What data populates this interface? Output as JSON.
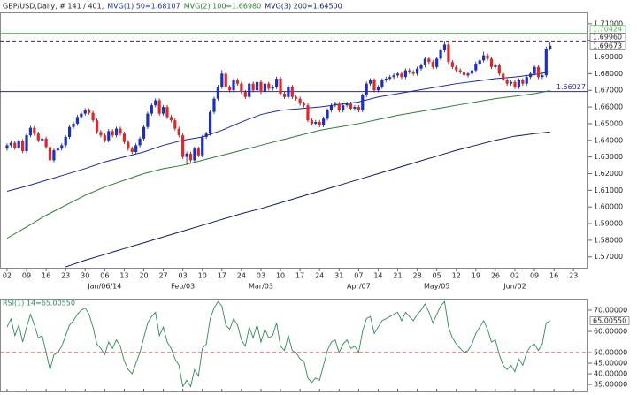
{
  "chart_data": {
    "type": "candlestick",
    "title": "GBP/USD,Daily, # 141 / 401,",
    "up_color": "#1c2fc4",
    "down_color": "#e0262a",
    "wick_color": "#222222",
    "x": [
      0,
      1,
      2,
      3,
      4,
      5,
      6,
      7,
      8,
      9,
      10,
      11,
      12,
      13,
      14,
      15,
      16,
      17,
      18,
      19,
      20,
      21,
      22,
      23,
      24,
      25,
      26,
      27,
      28,
      29,
      30,
      31,
      32,
      33,
      34,
      35,
      36,
      37,
      38,
      39,
      40,
      41,
      42,
      43,
      44,
      45,
      46,
      47,
      48,
      49,
      50,
      51,
      52,
      53,
      54,
      55,
      56,
      57,
      58,
      59,
      60,
      61,
      62,
      63,
      64,
      65,
      66,
      67,
      68,
      69,
      70,
      71,
      72,
      73,
      74,
      75,
      76,
      77,
      78,
      79,
      80,
      81,
      82,
      83,
      84,
      85,
      86,
      87,
      88,
      89,
      90,
      91,
      92,
      93,
      94,
      95,
      96,
      97,
      98,
      99,
      100,
      101,
      102,
      103,
      104,
      105,
      106,
      107,
      108,
      109,
      110,
      111,
      112,
      113,
      114,
      115,
      116,
      117,
      118,
      119,
      120,
      121,
      122,
      123,
      124,
      125,
      126,
      127,
      128,
      129,
      130,
      131,
      132,
      133,
      134,
      135,
      136,
      137,
      138,
      139
    ],
    "open": [
      1.635,
      1.637,
      1.6385,
      1.6355,
      1.6395,
      1.6335,
      1.643,
      1.6475,
      1.644,
      1.64,
      1.641,
      1.636,
      1.628,
      1.634,
      1.635,
      1.637,
      1.642,
      1.648,
      1.65,
      1.654,
      1.656,
      1.658,
      1.6565,
      1.652,
      1.645,
      1.643,
      1.64,
      1.6455,
      1.643,
      1.647,
      1.644,
      1.639,
      1.635,
      1.633,
      1.637,
      1.641,
      1.648,
      1.656,
      1.661,
      1.664,
      1.656,
      1.66,
      1.654,
      1.652,
      1.647,
      1.643,
      1.63,
      1.632,
      1.628,
      1.635,
      1.631,
      1.642,
      1.644,
      1.657,
      1.665,
      1.672,
      1.68,
      1.672,
      1.67,
      1.676,
      1.674,
      1.669,
      1.666,
      1.674,
      1.67,
      1.675,
      1.669,
      1.674,
      1.671,
      1.672,
      1.677,
      1.668,
      1.666,
      1.672,
      1.666,
      1.665,
      1.662,
      1.661,
      1.652,
      1.65,
      1.651,
      1.649,
      1.653,
      1.658,
      1.661,
      1.662,
      1.658,
      1.661,
      1.662,
      1.659,
      1.66,
      1.658,
      1.667,
      1.674,
      1.676,
      1.67,
      1.672,
      1.676,
      1.677,
      1.678,
      1.679,
      1.68,
      1.678,
      1.682,
      1.681,
      1.68,
      1.683,
      1.685,
      1.689,
      1.687,
      1.684,
      1.689,
      1.694,
      1.6975,
      1.687,
      1.684,
      1.682,
      1.681,
      1.679,
      1.68,
      1.682,
      1.686,
      1.688,
      1.691,
      1.689,
      1.684,
      1.685,
      1.68,
      1.676,
      1.674,
      1.675,
      1.672,
      1.676,
      1.674,
      1.678,
      1.68,
      1.684,
      1.678,
      1.679,
      1.695
    ],
    "high": [
      1.6382,
      1.6397,
      1.6397,
      1.6407,
      1.6407,
      1.6442,
      1.6487,
      1.6487,
      1.6452,
      1.6422,
      1.6422,
      1.6372,
      1.6352,
      1.6362,
      1.6382,
      1.6432,
      1.6492,
      1.6512,
      1.6552,
      1.6572,
      1.6592,
      1.6592,
      1.6577,
      1.6532,
      1.6462,
      1.6442,
      1.6467,
      1.6467,
      1.6482,
      1.6482,
      1.6452,
      1.6402,
      1.6362,
      1.6382,
      1.6422,
      1.6492,
      1.6572,
      1.6622,
      1.6652,
      1.6652,
      1.6612,
      1.6612,
      1.6552,
      1.6532,
      1.6482,
      1.6442,
      1.6332,
      1.6332,
      1.6362,
      1.6362,
      1.6432,
      1.6452,
      1.6582,
      1.6662,
      1.6732,
      1.6822,
      1.6812,
      1.6732,
      1.6772,
      1.6772,
      1.6752,
      1.6702,
      1.6752,
      1.6752,
      1.6762,
      1.6762,
      1.6752,
      1.6752,
      1.6732,
      1.6782,
      1.6782,
      1.6692,
      1.6732,
      1.6732,
      1.6672,
      1.6662,
      1.6632,
      1.6622,
      1.6532,
      1.6522,
      1.6522,
      1.6542,
      1.6592,
      1.6622,
      1.6632,
      1.6632,
      1.6622,
      1.6632,
      1.6632,
      1.6612,
      1.6612,
      1.6682,
      1.6752,
      1.6772,
      1.6772,
      1.6732,
      1.6772,
      1.6782,
      1.6792,
      1.6802,
      1.6812,
      1.6812,
      1.6832,
      1.6832,
      1.6822,
      1.6842,
      1.6862,
      1.6902,
      1.6902,
      1.6882,
      1.6902,
      1.6952,
      1.6996,
      1.6987,
      1.6882,
      1.6852,
      1.6832,
      1.6822,
      1.6812,
      1.6832,
      1.6872,
      1.6892,
      1.6932,
      1.6922,
      1.6902,
      1.6862,
      1.6862,
      1.6812,
      1.6772,
      1.6762,
      1.6762,
      1.6772,
      1.6772,
      1.6792,
      1.6812,
      1.6852,
      1.6852,
      1.6802,
      1.6962,
      1.699
    ],
    "low": [
      1.6338,
      1.6358,
      1.6343,
      1.6343,
      1.6323,
      1.6323,
      1.6418,
      1.6428,
      1.6388,
      1.6388,
      1.6348,
      1.6268,
      1.6268,
      1.6328,
      1.6338,
      1.6358,
      1.6408,
      1.6468,
      1.6488,
      1.6528,
      1.6548,
      1.6553,
      1.6508,
      1.6438,
      1.6418,
      1.6388,
      1.6388,
      1.6418,
      1.6418,
      1.6428,
      1.6378,
      1.6338,
      1.6318,
      1.6318,
      1.6358,
      1.6398,
      1.6468,
      1.6548,
      1.6598,
      1.6548,
      1.6548,
      1.6528,
      1.6508,
      1.6458,
      1.6418,
      1.6288,
      1.6252,
      1.6268,
      1.6268,
      1.6298,
      1.6298,
      1.6408,
      1.6428,
      1.6558,
      1.6638,
      1.6708,
      1.6708,
      1.6688,
      1.6688,
      1.6728,
      1.6678,
      1.6648,
      1.6648,
      1.6688,
      1.6688,
      1.6678,
      1.6678,
      1.6698,
      1.6698,
      1.6708,
      1.6668,
      1.6648,
      1.6648,
      1.6648,
      1.6638,
      1.6608,
      1.6598,
      1.6508,
      1.6488,
      1.6488,
      1.6478,
      1.6478,
      1.6518,
      1.6568,
      1.6598,
      1.6568,
      1.6568,
      1.6598,
      1.6578,
      1.6578,
      1.6568,
      1.6568,
      1.6658,
      1.6728,
      1.6688,
      1.6688,
      1.6708,
      1.6748,
      1.6758,
      1.6768,
      1.6778,
      1.6768,
      1.6768,
      1.6798,
      1.6788,
      1.6788,
      1.6818,
      1.6838,
      1.6858,
      1.6828,
      1.6828,
      1.6878,
      1.6928,
      1.6858,
      1.6828,
      1.6808,
      1.6798,
      1.6778,
      1.6778,
      1.6788,
      1.6808,
      1.6848,
      1.6868,
      1.6878,
      1.6828,
      1.6828,
      1.6788,
      1.6748,
      1.6728,
      1.6728,
      1.6708,
      1.6708,
      1.6728,
      1.6728,
      1.6768,
      1.6788,
      1.6768,
      1.6768,
      1.6778,
      1.6938
    ],
    "close": [
      1.637,
      1.6385,
      1.6355,
      1.6395,
      1.6335,
      1.643,
      1.6475,
      1.644,
      1.64,
      1.641,
      1.636,
      1.628,
      1.634,
      1.635,
      1.637,
      1.642,
      1.648,
      1.65,
      1.654,
      1.656,
      1.658,
      1.6565,
      1.652,
      1.645,
      1.643,
      1.64,
      1.6455,
      1.643,
      1.647,
      1.644,
      1.639,
      1.635,
      1.633,
      1.637,
      1.641,
      1.648,
      1.656,
      1.661,
      1.664,
      1.656,
      1.66,
      1.654,
      1.652,
      1.647,
      1.643,
      1.63,
      1.632,
      1.628,
      1.635,
      1.631,
      1.642,
      1.644,
      1.657,
      1.665,
      1.672,
      1.68,
      1.672,
      1.67,
      1.676,
      1.674,
      1.669,
      1.666,
      1.674,
      1.67,
      1.675,
      1.669,
      1.674,
      1.671,
      1.672,
      1.677,
      1.668,
      1.666,
      1.672,
      1.666,
      1.665,
      1.662,
      1.661,
      1.652,
      1.65,
      1.651,
      1.649,
      1.653,
      1.658,
      1.661,
      1.662,
      1.658,
      1.661,
      1.662,
      1.659,
      1.66,
      1.658,
      1.667,
      1.674,
      1.676,
      1.67,
      1.672,
      1.676,
      1.677,
      1.678,
      1.679,
      1.68,
      1.678,
      1.682,
      1.681,
      1.68,
      1.683,
      1.685,
      1.689,
      1.687,
      1.684,
      1.689,
      1.694,
      1.6975,
      1.687,
      1.684,
      1.682,
      1.681,
      1.679,
      1.68,
      1.682,
      1.686,
      1.688,
      1.691,
      1.689,
      1.684,
      1.685,
      1.68,
      1.676,
      1.674,
      1.675,
      1.672,
      1.676,
      1.674,
      1.678,
      1.68,
      1.684,
      1.678,
      1.679,
      1.695,
      1.69673
    ],
    "last_label": "1.69673",
    "lines": [
      {
        "name": "MVG(1) 50=1.68107",
        "color": "#1a2aa0",
        "x": [
          0,
          5,
          10,
          15,
          20,
          25,
          30,
          35,
          40,
          45,
          50,
          55,
          60,
          65,
          70,
          75,
          80,
          85,
          90,
          95,
          100,
          105,
          110,
          115,
          120,
          125,
          130,
          135,
          139
        ],
        "values": [
          1.6094,
          1.6125,
          1.616,
          1.6195,
          1.623,
          1.627,
          1.63,
          1.633,
          1.637,
          1.64,
          1.642,
          1.646,
          1.651,
          1.6555,
          1.658,
          1.659,
          1.66,
          1.6615,
          1.663,
          1.666,
          1.668,
          1.67,
          1.672,
          1.674,
          1.6755,
          1.677,
          1.678,
          1.6795,
          1.6811
        ]
      },
      {
        "name": "MVG(2) 100=1.66980",
        "color": "#2e7d32",
        "x": [
          0,
          5,
          10,
          15,
          20,
          25,
          30,
          35,
          40,
          45,
          50,
          55,
          60,
          65,
          70,
          75,
          80,
          85,
          90,
          95,
          100,
          105,
          110,
          115,
          120,
          125,
          130,
          135,
          139
        ],
        "values": [
          1.5812,
          1.588,
          1.595,
          1.601,
          1.607,
          1.612,
          1.616,
          1.62,
          1.623,
          1.625,
          1.628,
          1.631,
          1.634,
          1.637,
          1.64,
          1.643,
          1.646,
          1.648,
          1.65,
          1.6525,
          1.655,
          1.657,
          1.659,
          1.661,
          1.663,
          1.665,
          1.6665,
          1.668,
          1.6698
        ]
      },
      {
        "name": "MVG(3) 200=1.64500",
        "color": "#0d1b5e",
        "x": [
          15,
          20,
          25,
          30,
          35,
          40,
          45,
          50,
          55,
          60,
          65,
          70,
          75,
          80,
          85,
          90,
          95,
          100,
          105,
          110,
          115,
          120,
          125,
          130,
          135,
          139
        ],
        "values": [
          1.564,
          1.568,
          1.5715,
          1.575,
          1.5785,
          1.582,
          1.5855,
          1.589,
          1.5925,
          1.596,
          1.599,
          1.6025,
          1.606,
          1.6095,
          1.613,
          1.6165,
          1.62,
          1.6235,
          1.627,
          1.6305,
          1.634,
          1.637,
          1.64,
          1.6425,
          1.644,
          1.645
        ]
      }
    ],
    "levels": [
      {
        "value": 1.70424,
        "label": "1.70424",
        "color": "#4cbb4c",
        "style": "solid"
      },
      {
        "value": 1.6996,
        "label": "1.69960",
        "color": "#333333",
        "style": "dashed"
      },
      {
        "value": 1.66927,
        "label": "1.66927",
        "color": "#2a2aa0",
        "style": "solid"
      }
    ],
    "xlim": [
      -1.8,
      148.8
    ],
    "ylim": [
      1.5635,
      1.7168
    ],
    "yticks": [
      {
        "value": 1.57,
        "label": "1.57000"
      },
      {
        "value": 1.58,
        "label": "1.58000"
      },
      {
        "value": 1.59,
        "label": "1.59000"
      },
      {
        "value": 1.6,
        "label": "1.60000"
      },
      {
        "value": 1.61,
        "label": "1.61000"
      },
      {
        "value": 1.62,
        "label": "1.62000"
      },
      {
        "value": 1.63,
        "label": "1.63000"
      },
      {
        "value": 1.64,
        "label": "1.64000"
      },
      {
        "value": 1.65,
        "label": "1.65000"
      },
      {
        "value": 1.66,
        "label": "1.66000"
      },
      {
        "value": 1.67,
        "label": "1.67000"
      },
      {
        "value": 1.68,
        "label": "1.68000"
      },
      {
        "value": 1.69,
        "label": "1.69000"
      },
      {
        "value": 1.7,
        "label": "1.70000"
      },
      {
        "value": 1.71,
        "label": "1.71000"
      }
    ],
    "xticks": [
      {
        "value": 0,
        "label": "02"
      },
      {
        "value": 5,
        "label": "09"
      },
      {
        "value": 10,
        "label": "16"
      },
      {
        "value": 15,
        "label": "23"
      },
      {
        "value": 20,
        "label": "30"
      },
      {
        "value": 25,
        "label": "06"
      },
      {
        "value": 30,
        "label": "13"
      },
      {
        "value": 35,
        "label": "20"
      },
      {
        "value": 40,
        "label": "27"
      },
      {
        "value": 45,
        "label": "03"
      },
      {
        "value": 50,
        "label": "10"
      },
      {
        "value": 55,
        "label": "17"
      },
      {
        "value": 60,
        "label": "24"
      },
      {
        "value": 65,
        "label": "03"
      },
      {
        "value": 70,
        "label": "10"
      },
      {
        "value": 75,
        "label": "17"
      },
      {
        "value": 80,
        "label": "24"
      },
      {
        "value": 85,
        "label": "31"
      },
      {
        "value": 90,
        "label": "07"
      },
      {
        "value": 95,
        "label": "14"
      },
      {
        "value": 100,
        "label": "21"
      },
      {
        "value": 105,
        "label": "28"
      },
      {
        "value": 110,
        "label": "05"
      },
      {
        "value": 115,
        "label": "12"
      },
      {
        "value": 120,
        "label": "19"
      },
      {
        "value": 125,
        "label": "26"
      },
      {
        "value": 130,
        "label": "02"
      },
      {
        "value": 135,
        "label": "09"
      },
      {
        "value": 140,
        "label": "16"
      },
      {
        "value": 145,
        "label": "23"
      }
    ],
    "month_ticks": [
      {
        "value": 25,
        "label": "Jan/06/14"
      },
      {
        "value": 45,
        "label": "Feb/03"
      },
      {
        "value": 65,
        "label": "Mar/03"
      },
      {
        "value": 90,
        "label": "Apr/07"
      },
      {
        "value": 110,
        "label": "May/05"
      },
      {
        "value": 130,
        "label": "Jun/02"
      }
    ],
    "rsi": {
      "name": "RSI(1) 14=65.00550",
      "color": "#2e8b57",
      "values": [
        62,
        66,
        58,
        63,
        55,
        62,
        68,
        63,
        57,
        58,
        50,
        42,
        49,
        50,
        53,
        58,
        63,
        65,
        68,
        70,
        71,
        68,
        62,
        54,
        52,
        49,
        55,
        52,
        56,
        53,
        46,
        42,
        40,
        45,
        50,
        57,
        64,
        67,
        69,
        58,
        62,
        55,
        52,
        47,
        44,
        34,
        37,
        34,
        42,
        39,
        52,
        54,
        66,
        71,
        74,
        72,
        63,
        61,
        66,
        63,
        56,
        53,
        62,
        57,
        63,
        55,
        61,
        57,
        58,
        64,
        53,
        51,
        58,
        51,
        50,
        47,
        46,
        38,
        36,
        38,
        37,
        44,
        51,
        55,
        56,
        50,
        54,
        56,
        52,
        53,
        50,
        60,
        66,
        67,
        59,
        62,
        65,
        66,
        67,
        68,
        69,
        65,
        69,
        67,
        65,
        68,
        70,
        73,
        69,
        64,
        68,
        72,
        74,
        62,
        57,
        54,
        52,
        50,
        51,
        54,
        59,
        62,
        65,
        61,
        55,
        56,
        49,
        44,
        42,
        44,
        41,
        47,
        44,
        50,
        53,
        54,
        51,
        54,
        64,
        65.0055
      ],
      "last_label": "65.00550",
      "level": 50,
      "level_color": "#c03030",
      "ylim": [
        31.7,
        75.4
      ],
      "yticks": [
        {
          "value": 35,
          "label": "35.00000"
        },
        {
          "value": 40,
          "label": "40.00000"
        },
        {
          "value": 45,
          "label": "45.00000"
        },
        {
          "value": 50,
          "label": "50.00000"
        },
        {
          "value": 60,
          "label": "60.00000"
        },
        {
          "value": 70,
          "label": "70.00000"
        }
      ]
    }
  }
}
